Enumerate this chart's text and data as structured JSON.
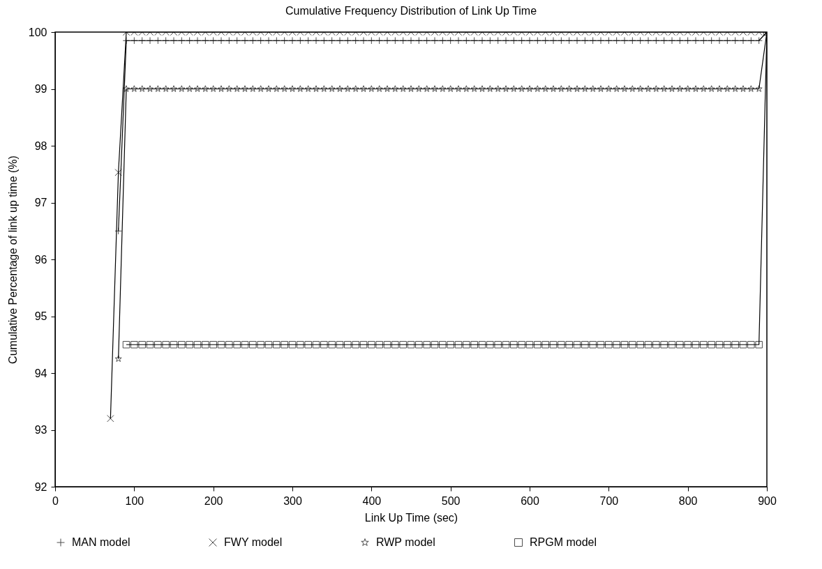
{
  "chart_data": {
    "type": "line",
    "title": "Cumulative Frequency Distribution of Link Up Time",
    "xlabel": "Link Up Time (sec)",
    "ylabel": "Cumulative Percentage of link up time (%)",
    "xlim": [
      0,
      900
    ],
    "xticks": [
      0,
      100,
      200,
      300,
      400,
      500,
      600,
      700,
      800,
      900
    ],
    "ylim": [
      92,
      100
    ],
    "yticks": [
      92,
      93,
      94,
      95,
      96,
      97,
      98,
      99,
      100
    ],
    "grid": false,
    "legend": "bottom",
    "line_style": "solid",
    "series": [
      {
        "name": "MAN model",
        "color": "#000000",
        "marker": "cross",
        "x": [
          80,
          90,
          100,
          110,
          120,
          130,
          140,
          150,
          160,
          170,
          180,
          190,
          200,
          210,
          220,
          230,
          240,
          250,
          260,
          270,
          280,
          290,
          300,
          310,
          320,
          330,
          340,
          350,
          360,
          370,
          380,
          390,
          400,
          410,
          420,
          430,
          440,
          450,
          460,
          470,
          480,
          490,
          500,
          510,
          520,
          530,
          540,
          550,
          560,
          570,
          580,
          590,
          600,
          610,
          620,
          630,
          640,
          650,
          660,
          670,
          680,
          690,
          700,
          710,
          720,
          730,
          740,
          750,
          760,
          770,
          780,
          790,
          800,
          810,
          820,
          830,
          840,
          850,
          860,
          870,
          880,
          890,
          900
        ],
        "values": [
          96.5,
          99.85,
          99.85,
          99.85,
          99.85,
          99.85,
          99.85,
          99.85,
          99.85,
          99.85,
          99.85,
          99.85,
          99.85,
          99.85,
          99.85,
          99.85,
          99.85,
          99.85,
          99.85,
          99.85,
          99.85,
          99.85,
          99.85,
          99.85,
          99.85,
          99.85,
          99.85,
          99.85,
          99.85,
          99.85,
          99.85,
          99.85,
          99.85,
          99.85,
          99.85,
          99.85,
          99.85,
          99.85,
          99.85,
          99.85,
          99.85,
          99.85,
          99.85,
          99.85,
          99.85,
          99.85,
          99.85,
          99.85,
          99.85,
          99.85,
          99.85,
          99.85,
          99.85,
          99.85,
          99.85,
          99.85,
          99.85,
          99.85,
          99.85,
          99.85,
          99.85,
          99.85,
          99.85,
          99.85,
          99.85,
          99.85,
          99.85,
          99.85,
          99.85,
          99.85,
          99.85,
          99.85,
          99.85,
          99.85,
          99.85,
          99.85,
          99.85,
          99.85,
          99.85,
          99.85,
          99.85,
          99.85,
          100
        ]
      },
      {
        "name": "FWY model",
        "color": "#000000",
        "marker": "cross",
        "x": [
          70,
          80,
          90,
          100,
          110,
          120,
          130,
          140,
          150,
          160,
          170,
          180,
          190,
          200,
          210,
          220,
          230,
          240,
          250,
          260,
          270,
          280,
          290,
          300,
          310,
          320,
          330,
          340,
          350,
          360,
          370,
          380,
          390,
          400,
          410,
          420,
          430,
          440,
          450,
          460,
          470,
          480,
          490,
          500,
          510,
          520,
          530,
          540,
          550,
          560,
          570,
          580,
          590,
          600,
          610,
          620,
          630,
          640,
          650,
          660,
          670,
          680,
          690,
          700,
          710,
          720,
          730,
          740,
          750,
          760,
          770,
          780,
          790,
          800,
          810,
          820,
          830,
          840,
          850,
          860,
          870,
          880,
          890,
          900
        ],
        "values": [
          93.2,
          97.53,
          100,
          100,
          100,
          100,
          100,
          100,
          100,
          100,
          100,
          100,
          100,
          100,
          100,
          100,
          100,
          100,
          100,
          100,
          100,
          100,
          100,
          100,
          100,
          100,
          100,
          100,
          100,
          100,
          100,
          100,
          100,
          100,
          100,
          100,
          100,
          100,
          100,
          100,
          100,
          100,
          100,
          100,
          100,
          100,
          100,
          100,
          100,
          100,
          100,
          100,
          100,
          100,
          100,
          100,
          100,
          100,
          100,
          100,
          100,
          100,
          100,
          100,
          100,
          100,
          100,
          100,
          100,
          100,
          100,
          100,
          100,
          100,
          100,
          100,
          100,
          100,
          100,
          100,
          100,
          100,
          100,
          100
        ]
      },
      {
        "name": "RWP model",
        "color": "#000000",
        "marker": "star",
        "x": [
          80,
          90,
          100,
          110,
          120,
          130,
          140,
          150,
          160,
          170,
          180,
          190,
          200,
          210,
          220,
          230,
          240,
          250,
          260,
          270,
          280,
          290,
          300,
          310,
          320,
          330,
          340,
          350,
          360,
          370,
          380,
          390,
          400,
          410,
          420,
          430,
          440,
          450,
          460,
          470,
          480,
          490,
          500,
          510,
          520,
          530,
          540,
          550,
          560,
          570,
          580,
          590,
          600,
          610,
          620,
          630,
          640,
          650,
          660,
          670,
          680,
          690,
          700,
          710,
          720,
          730,
          740,
          750,
          760,
          770,
          780,
          790,
          800,
          810,
          820,
          830,
          840,
          850,
          860,
          870,
          880,
          890,
          900
        ],
        "values": [
          94.25,
          99,
          99,
          99,
          99,
          99,
          99,
          99,
          99,
          99,
          99,
          99,
          99,
          99,
          99,
          99,
          99,
          99,
          99,
          99,
          99,
          99,
          99,
          99,
          99,
          99,
          99,
          99,
          99,
          99,
          99,
          99,
          99,
          99,
          99,
          99,
          99,
          99,
          99,
          99,
          99,
          99,
          99,
          99,
          99,
          99,
          99,
          99,
          99,
          99,
          99,
          99,
          99,
          99,
          99,
          99,
          99,
          99,
          99,
          99,
          99,
          99,
          99,
          99,
          99,
          99,
          99,
          99,
          99,
          99,
          99,
          99,
          99,
          99,
          99,
          99,
          99,
          99,
          99,
          99,
          99,
          99,
          100
        ]
      },
      {
        "name": "RPGM model",
        "color": "#000000",
        "marker": "square",
        "x": [
          90,
          100,
          110,
          120,
          130,
          140,
          150,
          160,
          170,
          180,
          190,
          200,
          210,
          220,
          230,
          240,
          250,
          260,
          270,
          280,
          290,
          300,
          310,
          320,
          330,
          340,
          350,
          360,
          370,
          380,
          390,
          400,
          410,
          420,
          430,
          440,
          450,
          460,
          470,
          480,
          490,
          500,
          510,
          520,
          530,
          540,
          550,
          560,
          570,
          580,
          590,
          600,
          610,
          620,
          630,
          640,
          650,
          660,
          670,
          680,
          690,
          700,
          710,
          720,
          730,
          740,
          750,
          760,
          770,
          780,
          790,
          800,
          810,
          820,
          830,
          840,
          850,
          860,
          870,
          880,
          890,
          900
        ],
        "values": [
          94.5,
          94.5,
          94.5,
          94.5,
          94.5,
          94.5,
          94.5,
          94.5,
          94.5,
          94.5,
          94.5,
          94.5,
          94.5,
          94.5,
          94.5,
          94.5,
          94.5,
          94.5,
          94.5,
          94.5,
          94.5,
          94.5,
          94.5,
          94.5,
          94.5,
          94.5,
          94.5,
          94.5,
          94.5,
          94.5,
          94.5,
          94.5,
          94.5,
          94.5,
          94.5,
          94.5,
          94.5,
          94.5,
          94.5,
          94.5,
          94.5,
          94.5,
          94.5,
          94.5,
          94.5,
          94.5,
          94.5,
          94.5,
          94.5,
          94.5,
          94.5,
          94.5,
          94.5,
          94.5,
          94.5,
          94.5,
          94.5,
          94.5,
          94.5,
          94.5,
          94.5,
          94.5,
          94.5,
          94.5,
          94.5,
          94.5,
          94.5,
          94.5,
          94.5,
          94.5,
          94.5,
          94.5,
          94.5,
          94.5,
          94.5,
          94.5,
          94.5,
          94.5,
          94.5,
          94.5,
          94.5,
          100
        ]
      }
    ]
  }
}
